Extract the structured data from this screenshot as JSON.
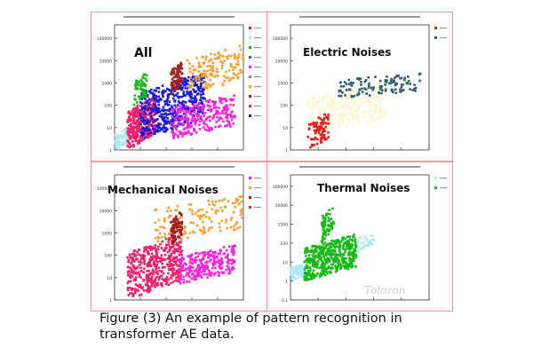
{
  "caption": "Figure (3) An example of pattern recognition in transformer AE data.",
  "watermark": "Tolozon",
  "chart_data": [
    {
      "type": "scatter",
      "label": "All",
      "yscale": "log",
      "xlim": [
        20,
        100
      ],
      "ylim": [
        1,
        100000
      ],
      "yticks": [
        "1",
        "10",
        "100",
        "1000",
        "10000",
        "100000"
      ],
      "grid": false,
      "legend": "right",
      "clusters": [
        {
          "color": "#aeeaf5",
          "x": [
            20,
            28
          ],
          "y": [
            1,
            10
          ],
          "n": 80
        },
        {
          "color": "#f0206a",
          "x": [
            28,
            46
          ],
          "y": [
            1,
            300
          ],
          "n": 350
        },
        {
          "color": "#1a1ad8",
          "x": [
            36,
            76
          ],
          "y": [
            3,
            3000
          ],
          "n": 500
        },
        {
          "color": "#ff22dd",
          "x": [
            55,
            95
          ],
          "y": [
            3,
            300
          ],
          "n": 250
        },
        {
          "color": "#f5a030",
          "x": [
            65,
            100
          ],
          "y": [
            300,
            50000
          ],
          "n": 140
        },
        {
          "color": "#18b818",
          "x": [
            32,
            40
          ],
          "y": [
            100,
            3000
          ],
          "n": 60
        },
        {
          "color": "#a02020",
          "x": [
            55,
            62
          ],
          "y": [
            300,
            10000
          ],
          "n": 80
        }
      ],
      "legend_colors": [
        "#e02020",
        "#aeeaf5",
        "#18b818",
        "#3a6a8a",
        "#ff22dd",
        "#888888",
        "#f5a030",
        "#a02020",
        "#f0206a",
        "#1a1ad8"
      ]
    },
    {
      "type": "scatter",
      "label": "Electric Noises",
      "yscale": "log",
      "xlim": [
        20,
        100
      ],
      "ylim": [
        1,
        100000
      ],
      "yticks": [
        "1",
        "10",
        "100",
        "1000",
        "10000",
        "100000"
      ],
      "grid": false,
      "legend": "right",
      "clusters": [
        {
          "color": "#fff6cc",
          "x": [
            30,
            75
          ],
          "y": [
            5,
            1000
          ],
          "n": 300
        },
        {
          "color": "#e02020",
          "x": [
            30,
            42
          ],
          "y": [
            1,
            50
          ],
          "n": 90
        },
        {
          "color": "#2f5f70",
          "x": [
            48,
            95
          ],
          "y": [
            200,
            3000
          ],
          "n": 120
        }
      ],
      "legend_colors": [
        "#e02020",
        "#2f5f70"
      ]
    },
    {
      "type": "scatter",
      "label": "Mechanical Noises",
      "yscale": "log",
      "xlim": [
        20,
        100
      ],
      "ylim": [
        1,
        100000
      ],
      "yticks": [
        "1",
        "10",
        "100",
        "1000",
        "10000",
        "100000"
      ],
      "grid": false,
      "legend": "right",
      "clusters": [
        {
          "color": "#f0206a",
          "x": [
            28,
            62
          ],
          "y": [
            1,
            1000
          ],
          "n": 450
        },
        {
          "color": "#ff22dd",
          "x": [
            60,
            95
          ],
          "y": [
            5,
            300
          ],
          "n": 250
        },
        {
          "color": "#f5a030",
          "x": [
            45,
            100
          ],
          "y": [
            300,
            50000
          ],
          "n": 150
        },
        {
          "color": "#a02020",
          "x": [
            55,
            62
          ],
          "y": [
            300,
            10000
          ],
          "n": 80
        }
      ],
      "legend_colors": [
        "#ff22dd",
        "#f5a030",
        "#a02020",
        "#f0206a"
      ]
    },
    {
      "type": "scatter",
      "label": "Thermal Noises",
      "yscale": "log",
      "xlim": [
        20,
        100
      ],
      "ylim": [
        0.1,
        100000
      ],
      "yticks": [
        "0.1",
        "1",
        "10",
        "100",
        "1000",
        "10000",
        "100000"
      ],
      "grid": false,
      "legend": "right",
      "clusters": [
        {
          "color": "#aeeaf5",
          "x": [
            20,
            30
          ],
          "y": [
            1,
            10
          ],
          "n": 80
        },
        {
          "color": "#aeeaf5",
          "x": [
            55,
            68
          ],
          "y": [
            30,
            300
          ],
          "n": 40
        },
        {
          "color": "#18b818",
          "x": [
            28,
            58
          ],
          "y": [
            1,
            300
          ],
          "n": 450
        },
        {
          "color": "#18b818",
          "x": [
            38,
            45
          ],
          "y": [
            100,
            10000
          ],
          "n": 70
        }
      ],
      "legend_colors": [
        "#aeeaf5",
        "#18b818"
      ]
    }
  ]
}
